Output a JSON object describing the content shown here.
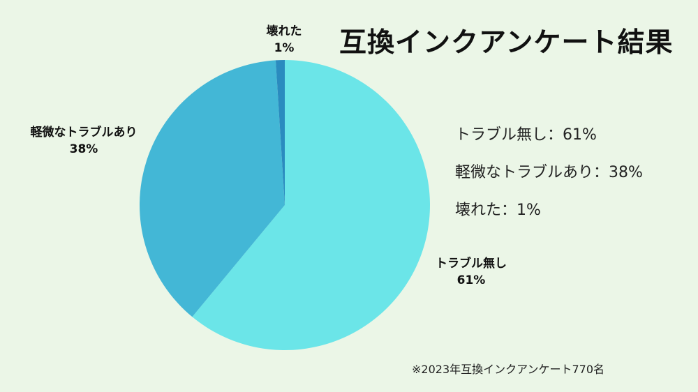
{
  "title": "互換インクアンケート結果",
  "chart_data": {
    "type": "pie",
    "title": "互換インクアンケート結果",
    "categories": [
      "トラブル無し",
      "軽微なトラブルあり",
      "壊れた"
    ],
    "values": [
      61,
      38,
      1
    ],
    "unit": "%",
    "colors": [
      "#6be5e8",
      "#43b7d6",
      "#2a8bbf"
    ],
    "start_angle": "12 o'clock, clockwise",
    "legend": [
      "トラブル無し：61%",
      "軽微なトラブルあり：38%",
      "壊れた：1%"
    ],
    "annotation": "※2023年互換インクアンケート770名"
  },
  "labels": {
    "no_trouble": {
      "name": "トラブル無し",
      "pct": "61%"
    },
    "minor_trouble": {
      "name": "軽微なトラブルあり",
      "pct": "38%"
    },
    "broken": {
      "name": "壊れた",
      "pct": "1%"
    }
  },
  "legend": {
    "items": [
      "トラブル無し：61%",
      "軽微なトラブルあり：38%",
      "壊れた：1%"
    ]
  },
  "footnote": "※2023年互換インクアンケート770名"
}
